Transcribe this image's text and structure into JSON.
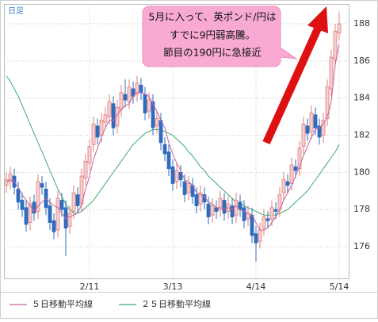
{
  "chart_data": {
    "type": "candlestick",
    "title": "日足",
    "annotation": [
      "5月に入って、英ポンド/円は",
      "すでに9円弱高騰。",
      "節目の190円に急接近"
    ],
    "categories": [
      null,
      null,
      null,
      null,
      null,
      null,
      null,
      null,
      null,
      null,
      null,
      null,
      null,
      null,
      null,
      null,
      null,
      null,
      null,
      null,
      null,
      "2/11",
      null,
      null,
      null,
      null,
      null,
      null,
      null,
      null,
      null,
      null,
      null,
      null,
      null,
      null,
      null,
      null,
      null,
      null,
      null,
      null,
      "3/13",
      null,
      null,
      null,
      null,
      null,
      null,
      null,
      null,
      null,
      null,
      null,
      null,
      null,
      null,
      null,
      null,
      null,
      null,
      null,
      null,
      "4/14",
      null,
      null,
      null,
      null,
      null,
      null,
      null,
      null,
      null,
      null,
      null,
      null,
      null,
      null,
      null,
      null,
      null,
      null,
      null,
      null,
      "5/14"
    ],
    "open": [
      179.3,
      179.5,
      179.8,
      179.1,
      178.5,
      178.1,
      177.3,
      178.4,
      177.9,
      179.4,
      179.1,
      178.2,
      177.4,
      176.9,
      178.5,
      178.1,
      177.1,
      177.9,
      178.8,
      178.3,
      179.7,
      180.5,
      181.5,
      182.5,
      182.0,
      182.7,
      183.0,
      183.7,
      182.5,
      183.4,
      184.2,
      183.8,
      184.5,
      184.2,
      184.7,
      184.2,
      183.3,
      183.8,
      182.5,
      182.8,
      181.5,
      181.1,
      180.3,
      179.5,
      180.0,
      179.5,
      178.9,
      179.3,
      178.8,
      178.3,
      178.8,
      178.3,
      177.7,
      178.1,
      178.0,
      178.5,
      177.9,
      178.2,
      177.7,
      178.4,
      178.1,
      177.5,
      177.7,
      176.7,
      176.3,
      177.0,
      177.5,
      177.5,
      178.0,
      178.0,
      178.9,
      179.5,
      179.4,
      180.3,
      180.2,
      181.4,
      182.5,
      182.2,
      183.1,
      182.5,
      182.0,
      182.9,
      184.5,
      186.1,
      187.5
    ],
    "high": [
      180.0,
      180.3,
      180.2,
      179.5,
      178.9,
      178.5,
      178.7,
      178.8,
      179.9,
      179.8,
      179.5,
      178.6,
      177.8,
      179.0,
      178.9,
      178.5,
      178.2,
      179.3,
      179.2,
      180.2,
      181.0,
      181.8,
      183.0,
      182.9,
      183.2,
      183.5,
      184.2,
      184.1,
      183.9,
      184.7,
      185.0,
      185.0,
      184.9,
      185.2,
      185.1,
      184.6,
      184.3,
      184.2,
      183.3,
      183.2,
      181.9,
      181.5,
      180.7,
      180.5,
      180.4,
      179.9,
      179.8,
      179.7,
      179.2,
      179.3,
      179.2,
      178.7,
      178.6,
      178.5,
      179.0,
      178.9,
      178.7,
      178.6,
      178.9,
      178.8,
      178.5,
      178.2,
      178.1,
      177.1,
      177.3,
      178.0,
      177.9,
      178.5,
      178.4,
      179.2,
      180.0,
      179.9,
      180.8,
      180.7,
      181.7,
      183.0,
      182.9,
      183.6,
      183.5,
      182.9,
      183.2,
      185.0,
      186.6,
      188.0,
      188.6
    ],
    "low": [
      178.9,
      179.1,
      178.8,
      178.0,
      177.6,
      176.8,
      176.9,
      177.4,
      177.5,
      178.8,
      177.7,
      176.9,
      176.4,
      176.5,
      177.6,
      175.5,
      176.7,
      177.5,
      177.8,
      177.9,
      179.3,
      180.1,
      181.1,
      181.5,
      181.6,
      182.3,
      182.6,
      182.0,
      182.1,
      183.0,
      183.5,
      183.4,
      183.7,
      183.8,
      183.9,
      182.8,
      182.9,
      182.0,
      182.1,
      181.2,
      180.6,
      179.8,
      179.0,
      179.1,
      179.2,
      178.4,
      178.5,
      178.3,
      177.8,
      177.9,
      178.0,
      177.2,
      177.3,
      177.5,
      177.6,
      177.4,
      177.5,
      177.2,
      177.3,
      177.6,
      177.0,
      177.1,
      176.2,
      175.2,
      175.9,
      176.6,
      177.0,
      177.1,
      177.5,
      177.6,
      178.5,
      178.9,
      179.0,
      179.7,
      179.8,
      181.0,
      181.7,
      181.8,
      182.0,
      181.5,
      181.6,
      182.5,
      184.1,
      185.7,
      187.1
    ],
    "close": [
      179.6,
      179.9,
      179.2,
      178.4,
      178.0,
      177.2,
      178.3,
      177.8,
      179.5,
      179.2,
      178.1,
      177.3,
      176.8,
      178.6,
      178.0,
      177.0,
      177.8,
      178.9,
      178.2,
      179.8,
      180.6,
      181.4,
      182.6,
      181.9,
      182.8,
      183.1,
      183.8,
      182.4,
      183.5,
      184.3,
      183.9,
      184.6,
      184.1,
      184.8,
      184.3,
      183.2,
      183.9,
      182.4,
      182.9,
      181.6,
      181.0,
      180.2,
      179.4,
      180.1,
      179.6,
      178.8,
      179.4,
      178.7,
      178.2,
      178.9,
      178.4,
      177.6,
      178.2,
      177.9,
      178.6,
      177.8,
      178.3,
      177.6,
      178.5,
      178.0,
      177.4,
      177.8,
      176.6,
      176.2,
      176.9,
      177.6,
      177.4,
      178.1,
      177.9,
      178.8,
      179.6,
      179.3,
      180.4,
      180.1,
      181.3,
      182.6,
      182.1,
      183.2,
      182.4,
      181.9,
      182.8,
      184.6,
      186.2,
      187.6,
      188.0
    ],
    "up_color": "#e07a7a",
    "down_color": "#2f6cbf",
    "series": [
      {
        "name": "５日移動平均線",
        "color": "#c264a0",
        "values": [
          179.5,
          179.6,
          179.5,
          179.2,
          178.8,
          178.5,
          178.2,
          177.9,
          178.2,
          178.4,
          178.6,
          178.4,
          178.2,
          178.1,
          177.8,
          177.5,
          177.6,
          177.7,
          177.8,
          178.3,
          179.1,
          179.8,
          180.7,
          181.3,
          181.9,
          182.4,
          182.8,
          182.8,
          183.1,
          183.4,
          183.6,
          183.7,
          184.1,
          184.3,
          184.3,
          184.2,
          184.1,
          183.7,
          183.3,
          182.8,
          182.4,
          181.6,
          181.0,
          180.5,
          180.1,
          179.6,
          179.5,
          179.3,
          178.9,
          178.8,
          178.7,
          178.4,
          178.3,
          178.1,
          178.1,
          178.0,
          178.1,
          178.0,
          178.2,
          178.0,
          177.9,
          177.8,
          177.7,
          177.3,
          176.9,
          176.9,
          177.0,
          177.3,
          177.6,
          178.0,
          178.5,
          178.9,
          179.3,
          179.8,
          180.3,
          180.9,
          181.4,
          181.9,
          182.3,
          182.4,
          182.6,
          183.0,
          183.8,
          185.8,
          186.9
        ]
      },
      {
        "name": "２５日移動平均線",
        "color": "#3aad6a",
        "values": [
          185.2,
          184.9,
          184.5,
          184.1,
          183.6,
          183.1,
          182.6,
          182.1,
          181.6,
          181.1,
          180.6,
          180.1,
          179.6,
          179.1,
          178.7,
          178.3,
          178.0,
          177.8,
          177.8,
          177.9,
          178.1,
          178.3,
          178.5,
          178.8,
          179.1,
          179.4,
          179.7,
          180.0,
          180.3,
          180.6,
          180.9,
          181.2,
          181.5,
          181.7,
          181.9,
          182.1,
          182.2,
          182.3,
          182.3,
          182.3,
          182.2,
          182.1,
          182.0,
          181.8,
          181.6,
          181.4,
          181.1,
          180.9,
          180.6,
          180.3,
          180.1,
          179.8,
          179.6,
          179.4,
          179.2,
          179.0,
          178.8,
          178.6,
          178.4,
          178.3,
          178.2,
          178.1,
          178.0,
          177.9,
          177.8,
          177.7,
          177.7,
          177.7,
          177.7,
          177.8,
          177.9,
          178.0,
          178.2,
          178.4,
          178.6,
          178.8,
          179.0,
          179.3,
          179.6,
          179.9,
          180.2,
          180.5,
          180.8,
          181.1,
          181.5
        ]
      }
    ],
    "ylim": [
      174.25,
      189.07
    ],
    "yticks": [
      176,
      178,
      180,
      182,
      184,
      186,
      188
    ],
    "grid": true
  }
}
